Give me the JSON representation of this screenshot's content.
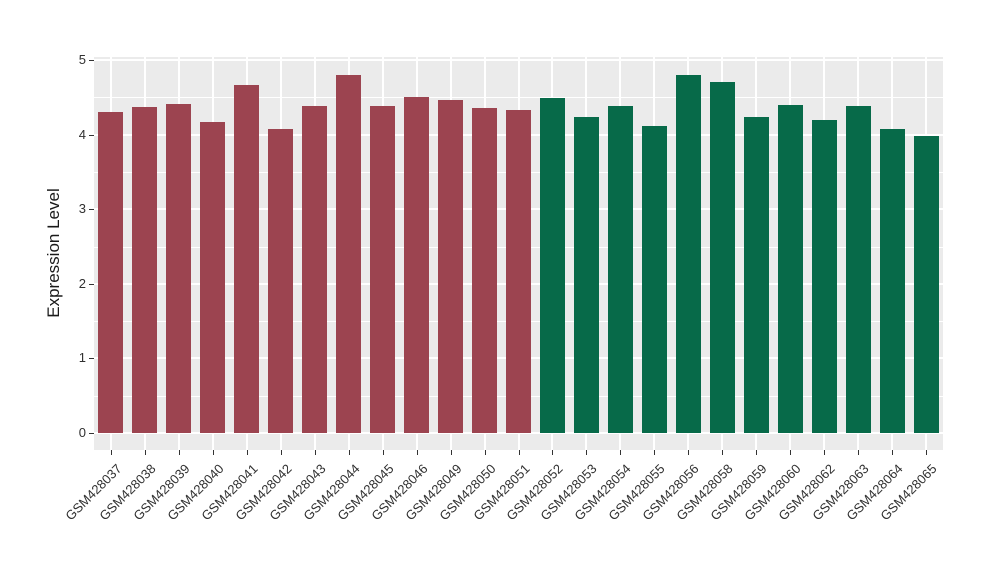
{
  "figure": {
    "background": "#ffffff",
    "panel_background": "#EBEBEB",
    "grid_color": "#FFFFFF",
    "axis_text_color": "#303030",
    "tick_mark_color": "#333333"
  },
  "chart_data": {
    "type": "bar",
    "title": "",
    "xlabel": "",
    "ylabel": "Expression Level",
    "ylim": [
      0,
      5
    ],
    "yticks": [
      0,
      1,
      2,
      3,
      4,
      5
    ],
    "ytick_labels": [
      "0",
      "1",
      "2",
      "3",
      "4",
      "5"
    ],
    "minor_yticks": [
      0.5,
      1.5,
      2.5,
      3.5,
      4.5
    ],
    "grid": "white major and minor horizontal lines plus vertical line at each category center, on grey panel",
    "legend_position": "none",
    "x_label_rotation_deg": 45,
    "categories": [
      "GSM428037",
      "GSM428038",
      "GSM428039",
      "GSM428040",
      "GSM428041",
      "GSM428042",
      "GSM428043",
      "GSM428044",
      "GSM428045",
      "GSM428046",
      "GSM428049",
      "GSM428050",
      "GSM428051",
      "GSM428052",
      "GSM428053",
      "GSM428054",
      "GSM428055",
      "GSM428056",
      "GSM428058",
      "GSM428059",
      "GSM428060",
      "GSM428062",
      "GSM428063",
      "GSM428064",
      "GSM428065"
    ],
    "groups": [
      {
        "name": "maroon-group",
        "color": "#9C4450",
        "categories": [
          "GSM428037",
          "GSM428038",
          "GSM428039",
          "GSM428040",
          "GSM428041",
          "GSM428042",
          "GSM428043",
          "GSM428044",
          "GSM428045",
          "GSM428046",
          "GSM428049",
          "GSM428050",
          "GSM428051"
        ],
        "values": [
          4.3,
          4.37,
          4.41,
          4.17,
          4.67,
          4.08,
          4.39,
          4.8,
          4.39,
          4.51,
          4.47,
          4.35,
          4.33
        ]
      },
      {
        "name": "green-group",
        "color": "#076A49",
        "categories": [
          "GSM428052",
          "GSM428053",
          "GSM428054",
          "GSM428055",
          "GSM428056",
          "GSM428058",
          "GSM428059",
          "GSM428060",
          "GSM428062",
          "GSM428063",
          "GSM428064",
          "GSM428065"
        ],
        "values": [
          4.49,
          4.24,
          4.39,
          4.11,
          4.8,
          4.71,
          4.24,
          4.4,
          4.19,
          4.39,
          4.07,
          3.98
        ]
      }
    ]
  }
}
